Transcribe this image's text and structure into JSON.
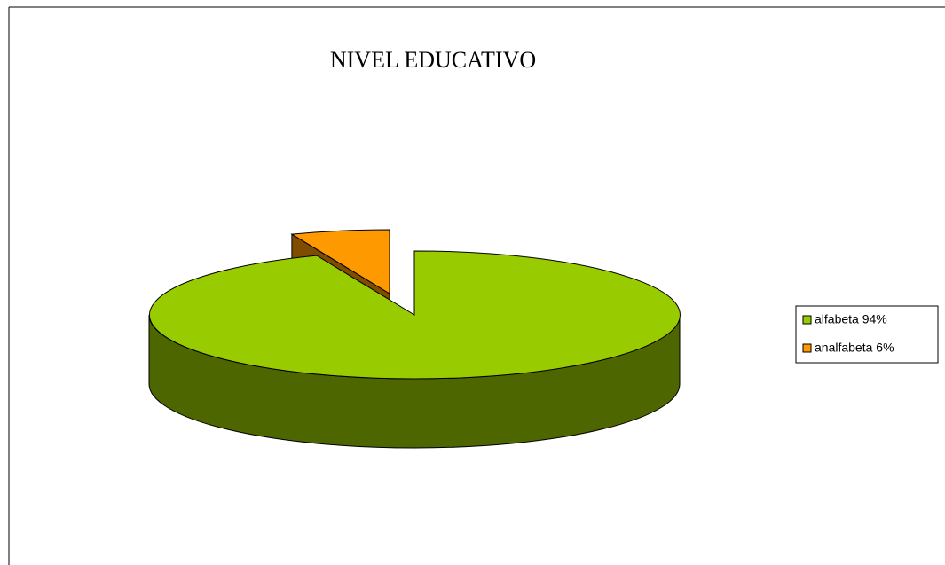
{
  "chart_data": {
    "type": "pie",
    "title": "NIVEL EDUCATIVO",
    "categories": [
      "alfabeta 94%",
      "analfabeta 6%"
    ],
    "values": [
      94,
      6
    ],
    "colors": [
      "#99cc00",
      "#ff9900"
    ],
    "side_colors": [
      "#4d6600",
      "#804c00"
    ]
  }
}
